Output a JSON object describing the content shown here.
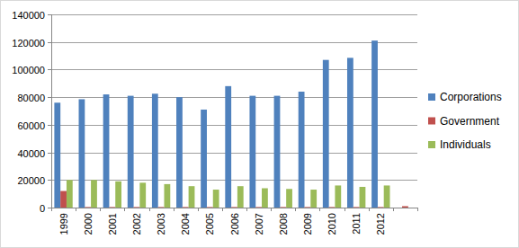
{
  "chart_data": {
    "type": "bar",
    "categories": [
      "1999",
      "2000",
      "2001",
      "2002",
      "2003",
      "2004",
      "2005",
      "2006",
      "2007",
      "2008",
      "2009",
      "2010",
      "2011",
      "2012",
      null
    ],
    "series": [
      {
        "name": "Corporations",
        "color": "#4f81bd",
        "values": [
          76000,
          78500,
          82000,
          81000,
          82500,
          80000,
          71000,
          88000,
          81000,
          81000,
          84000,
          107000,
          108500,
          121000,
          0
        ]
      },
      {
        "name": "Government",
        "color": "#c0504d",
        "values": [
          12000,
          400,
          400,
          400,
          400,
          400,
          400,
          400,
          400,
          400,
          400,
          400,
          400,
          400,
          1000
        ]
      },
      {
        "name": "Individuals",
        "color": "#9bbb59",
        "values": [
          20000,
          20000,
          19000,
          18000,
          17000,
          15500,
          13000,
          15500,
          14000,
          13500,
          13000,
          16000,
          15000,
          16000,
          0
        ]
      }
    ],
    "ylim": [
      0,
      140000
    ],
    "yticks": [
      0,
      20000,
      40000,
      60000,
      80000,
      100000,
      120000,
      140000
    ],
    "grid": true,
    "legend": "right"
  }
}
